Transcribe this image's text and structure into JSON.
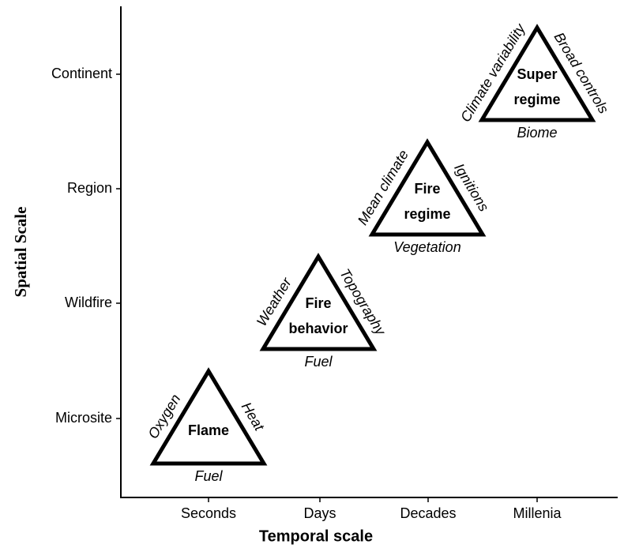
{
  "axes": {
    "x": {
      "label": "Temporal scale",
      "categories": [
        "Seconds",
        "Days",
        "Decades",
        "Millenia"
      ]
    },
    "y": {
      "label": "Spatial Scale",
      "categories": [
        "Continent",
        "Region",
        "Wildfire",
        "Microsite"
      ]
    }
  },
  "triangles": [
    {
      "title": [
        "Flame"
      ],
      "left": "Oxygen",
      "right": "Heat",
      "bottom": "Fuel"
    },
    {
      "title": [
        "Fire",
        "behavior"
      ],
      "left": "Weather",
      "right": "Topography",
      "bottom": "Fuel"
    },
    {
      "title": [
        "Fire",
        "regime"
      ],
      "left": "Mean climate",
      "right": "Ignitions",
      "bottom": "Vegetation"
    },
    {
      "title": [
        "Super",
        "regime"
      ],
      "left": "Climate variability",
      "right": "Broad controls",
      "bottom": "Biome"
    }
  ]
}
